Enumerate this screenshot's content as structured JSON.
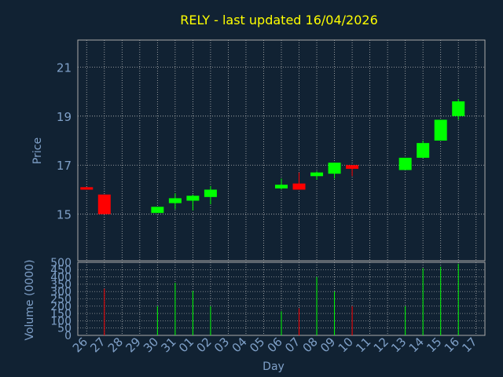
{
  "chart_data": {
    "type": "candlestick",
    "title": "RELY - last updated 16/04/2026",
    "price_ylabel": "Price",
    "volume_ylabel": "Volume (0000)",
    "xlabel": "Day",
    "x_ticks": [
      "26",
      "27",
      "28",
      "29",
      "30",
      "31",
      "01",
      "02",
      "03",
      "04",
      "05",
      "06",
      "07",
      "08",
      "09",
      "10",
      "11",
      "12",
      "13",
      "14",
      "15",
      "16",
      "17"
    ],
    "price_ylim": [
      13.1,
      22.1
    ],
    "price_yticks": [
      "15",
      "17",
      "19",
      "21"
    ],
    "volume_ylim": [
      0,
      500
    ],
    "volume_yticks": [
      "0",
      "50",
      "100",
      "150",
      "200",
      "250",
      "300",
      "350",
      "400",
      "450",
      "500"
    ],
    "grid": true,
    "colors": {
      "background": "#112233",
      "title": "#ffff00",
      "axis_text": "#7fa0c8",
      "frame": "#aaaaaa",
      "grid": "#b8b8b8",
      "up": "#00ff00",
      "down": "#ff0000"
    },
    "candles": [
      {
        "day": "26",
        "open": 16.1,
        "high": 16.1,
        "low": 16.0,
        "close": 16.0,
        "volume": 0
      },
      {
        "day": "27",
        "open": 15.8,
        "high": 15.8,
        "low": 15.0,
        "close": 15.0,
        "volume": 320
      },
      {
        "day": "30",
        "open": 15.05,
        "high": 15.3,
        "low": 15.05,
        "close": 15.3,
        "volume": 200
      },
      {
        "day": "31",
        "open": 15.45,
        "high": 15.85,
        "low": 15.2,
        "close": 15.65,
        "volume": 360
      },
      {
        "day": "01",
        "open": 15.55,
        "high": 15.8,
        "low": 15.15,
        "close": 15.75,
        "volume": 305
      },
      {
        "day": "02",
        "open": 15.7,
        "high": 16.15,
        "low": 15.4,
        "close": 16.0,
        "volume": 200
      },
      {
        "day": "06",
        "open": 16.05,
        "high": 16.45,
        "low": 16.0,
        "close": 16.2,
        "volume": 165
      },
      {
        "day": "07",
        "open": 16.25,
        "high": 16.7,
        "low": 16.0,
        "close": 16.0,
        "volume": 185
      },
      {
        "day": "08",
        "open": 16.55,
        "high": 16.75,
        "low": 16.4,
        "close": 16.7,
        "volume": 400
      },
      {
        "day": "09",
        "open": 16.65,
        "high": 17.1,
        "low": 16.45,
        "close": 17.1,
        "volume": 300
      },
      {
        "day": "10",
        "open": 17.0,
        "high": 17.0,
        "low": 16.55,
        "close": 16.85,
        "volume": 200
      },
      {
        "day": "13",
        "open": 16.8,
        "high": 17.3,
        "low": 16.8,
        "close": 17.3,
        "volume": 200
      },
      {
        "day": "14",
        "open": 17.3,
        "high": 18.0,
        "low": 17.3,
        "close": 17.9,
        "volume": 460
      },
      {
        "day": "15",
        "open": 18.0,
        "high": 18.85,
        "low": 18.0,
        "close": 18.85,
        "volume": 470
      },
      {
        "day": "16",
        "open": 19.0,
        "high": 19.7,
        "low": 18.85,
        "close": 19.6,
        "volume": 490
      }
    ]
  }
}
